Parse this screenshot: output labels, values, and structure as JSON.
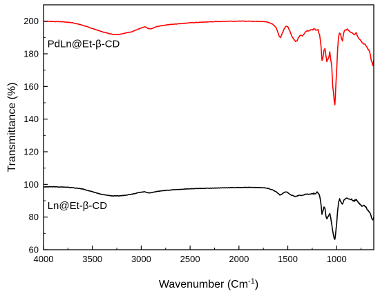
{
  "chart_data": {
    "type": "line",
    "title": "",
    "xlabel": "Wavenumber (Cm",
    "xlabel_sup": "-1",
    "xlabel_close": ")",
    "ylabel": "Transmittance (%)",
    "xlim": [
      4000,
      620
    ],
    "ylim": [
      60,
      210
    ],
    "x_reversed": true,
    "grid": false,
    "xticks": [
      4000,
      3500,
      3000,
      2500,
      2000,
      1500,
      1000
    ],
    "yticks": [
      60,
      80,
      100,
      120,
      140,
      160,
      180,
      200
    ],
    "annotations": [
      {
        "text": "PdLn@Et-β-CD",
        "x": 3960,
        "y": 184
      },
      {
        "text": "Ln@Et-β-CD",
        "x": 3960,
        "y": 85
      }
    ],
    "series": [
      {
        "color": "#ff0000",
        "points": [
          [
            4000,
            200
          ],
          [
            3900,
            199.8
          ],
          [
            3800,
            199.6
          ],
          [
            3700,
            199
          ],
          [
            3600,
            197.5
          ],
          [
            3500,
            195.5
          ],
          [
            3400,
            193.5
          ],
          [
            3300,
            192
          ],
          [
            3250,
            191.8
          ],
          [
            3200,
            192.2
          ],
          [
            3100,
            193.5
          ],
          [
            3000,
            195.8
          ],
          [
            2960,
            196.5
          ],
          [
            2930,
            195.5
          ],
          [
            2900,
            195.2
          ],
          [
            2850,
            196.5
          ],
          [
            2800,
            197.2
          ],
          [
            2700,
            198
          ],
          [
            2500,
            199
          ],
          [
            2300,
            199.6
          ],
          [
            2100,
            200
          ],
          [
            1900,
            200
          ],
          [
            1750,
            199.8
          ],
          [
            1700,
            199.3
          ],
          [
            1650,
            198
          ],
          [
            1620,
            196
          ],
          [
            1600,
            193
          ],
          [
            1590,
            191
          ],
          [
            1575,
            190
          ],
          [
            1560,
            192
          ],
          [
            1540,
            195
          ],
          [
            1520,
            197
          ],
          [
            1500,
            196.5
          ],
          [
            1480,
            194
          ],
          [
            1460,
            191
          ],
          [
            1440,
            189
          ],
          [
            1420,
            187.5
          ],
          [
            1405,
            188
          ],
          [
            1390,
            190
          ],
          [
            1370,
            191.5
          ],
          [
            1350,
            191
          ],
          [
            1330,
            192.5
          ],
          [
            1310,
            194
          ],
          [
            1290,
            194
          ],
          [
            1270,
            194.5
          ],
          [
            1250,
            195
          ],
          [
            1230,
            195
          ],
          [
            1210,
            195
          ],
          [
            1190,
            194.5
          ],
          [
            1175,
            192
          ],
          [
            1160,
            185
          ],
          [
            1150,
            176
          ],
          [
            1140,
            178
          ],
          [
            1130,
            182
          ],
          [
            1120,
            183
          ],
          [
            1110,
            179
          ],
          [
            1100,
            175
          ],
          [
            1090,
            177
          ],
          [
            1080,
            178
          ],
          [
            1070,
            181
          ],
          [
            1060,
            176
          ],
          [
            1050,
            172
          ],
          [
            1040,
            160
          ],
          [
            1030,
            155
          ],
          [
            1025,
            151
          ],
          [
            1018,
            149
          ],
          [
            1010,
            158
          ],
          [
            1000,
            170
          ],
          [
            990,
            183
          ],
          [
            980,
            190
          ],
          [
            970,
            193
          ],
          [
            960,
            192
          ],
          [
            950,
            189
          ],
          [
            940,
            188
          ],
          [
            930,
            192
          ],
          [
            920,
            194
          ],
          [
            900,
            195
          ],
          [
            880,
            194.5
          ],
          [
            860,
            193.5
          ],
          [
            840,
            193
          ],
          [
            820,
            192
          ],
          [
            800,
            193
          ],
          [
            780,
            190
          ],
          [
            760,
            189
          ],
          [
            740,
            187
          ],
          [
            720,
            186
          ],
          [
            700,
            185
          ],
          [
            680,
            183
          ],
          [
            660,
            181
          ],
          [
            645,
            176
          ],
          [
            630,
            173
          ],
          [
            620,
            176
          ]
        ]
      },
      {
        "color": "#000000",
        "points": [
          [
            4000,
            98.5
          ],
          [
            3900,
            98.6
          ],
          [
            3800,
            98.4
          ],
          [
            3700,
            98
          ],
          [
            3600,
            97.2
          ],
          [
            3500,
            95.5
          ],
          [
            3400,
            93.8
          ],
          [
            3300,
            93
          ],
          [
            3250,
            92.9
          ],
          [
            3200,
            93.1
          ],
          [
            3100,
            94
          ],
          [
            3000,
            95.3
          ],
          [
            2960,
            95.5
          ],
          [
            2930,
            94.8
          ],
          [
            2900,
            94.9
          ],
          [
            2850,
            95.6
          ],
          [
            2800,
            96
          ],
          [
            2700,
            96.6
          ],
          [
            2500,
            97.3
          ],
          [
            2300,
            97.7
          ],
          [
            2100,
            98
          ],
          [
            1900,
            98.2
          ],
          [
            1750,
            98
          ],
          [
            1700,
            97.5
          ],
          [
            1650,
            96.5
          ],
          [
            1620,
            95.5
          ],
          [
            1600,
            94.5
          ],
          [
            1580,
            93.5
          ],
          [
            1560,
            94
          ],
          [
            1540,
            95
          ],
          [
            1520,
            95.5
          ],
          [
            1500,
            95
          ],
          [
            1480,
            94
          ],
          [
            1460,
            93.3
          ],
          [
            1440,
            93
          ],
          [
            1420,
            92.5
          ],
          [
            1400,
            93
          ],
          [
            1380,
            93.5
          ],
          [
            1360,
            93.2
          ],
          [
            1340,
            93.5
          ],
          [
            1320,
            94
          ],
          [
            1300,
            94
          ],
          [
            1280,
            94
          ],
          [
            1260,
            94.2
          ],
          [
            1240,
            94.3
          ],
          [
            1220,
            94.5
          ],
          [
            1200,
            95
          ],
          [
            1185,
            94.5
          ],
          [
            1170,
            92
          ],
          [
            1160,
            88
          ],
          [
            1150,
            82
          ],
          [
            1140,
            84
          ],
          [
            1130,
            86
          ],
          [
            1120,
            85
          ],
          [
            1110,
            81
          ],
          [
            1100,
            79
          ],
          [
            1090,
            80
          ],
          [
            1080,
            81
          ],
          [
            1070,
            82
          ],
          [
            1060,
            79
          ],
          [
            1050,
            76
          ],
          [
            1040,
            71
          ],
          [
            1030,
            68
          ],
          [
            1025,
            67
          ],
          [
            1018,
            66.5
          ],
          [
            1010,
            70
          ],
          [
            1000,
            76
          ],
          [
            990,
            84
          ],
          [
            980,
            89
          ],
          [
            970,
            91
          ],
          [
            960,
            90
          ],
          [
            950,
            88.5
          ],
          [
            940,
            88
          ],
          [
            930,
            90
          ],
          [
            920,
            91
          ],
          [
            900,
            91.5
          ],
          [
            880,
            91.2
          ],
          [
            860,
            91
          ],
          [
            840,
            90.5
          ],
          [
            820,
            90
          ],
          [
            800,
            90.5
          ],
          [
            780,
            89
          ],
          [
            760,
            88
          ],
          [
            740,
            87
          ],
          [
            720,
            87
          ],
          [
            700,
            86
          ],
          [
            680,
            84
          ],
          [
            660,
            83
          ],
          [
            645,
            80
          ],
          [
            630,
            78
          ],
          [
            620,
            80
          ]
        ]
      }
    ]
  }
}
